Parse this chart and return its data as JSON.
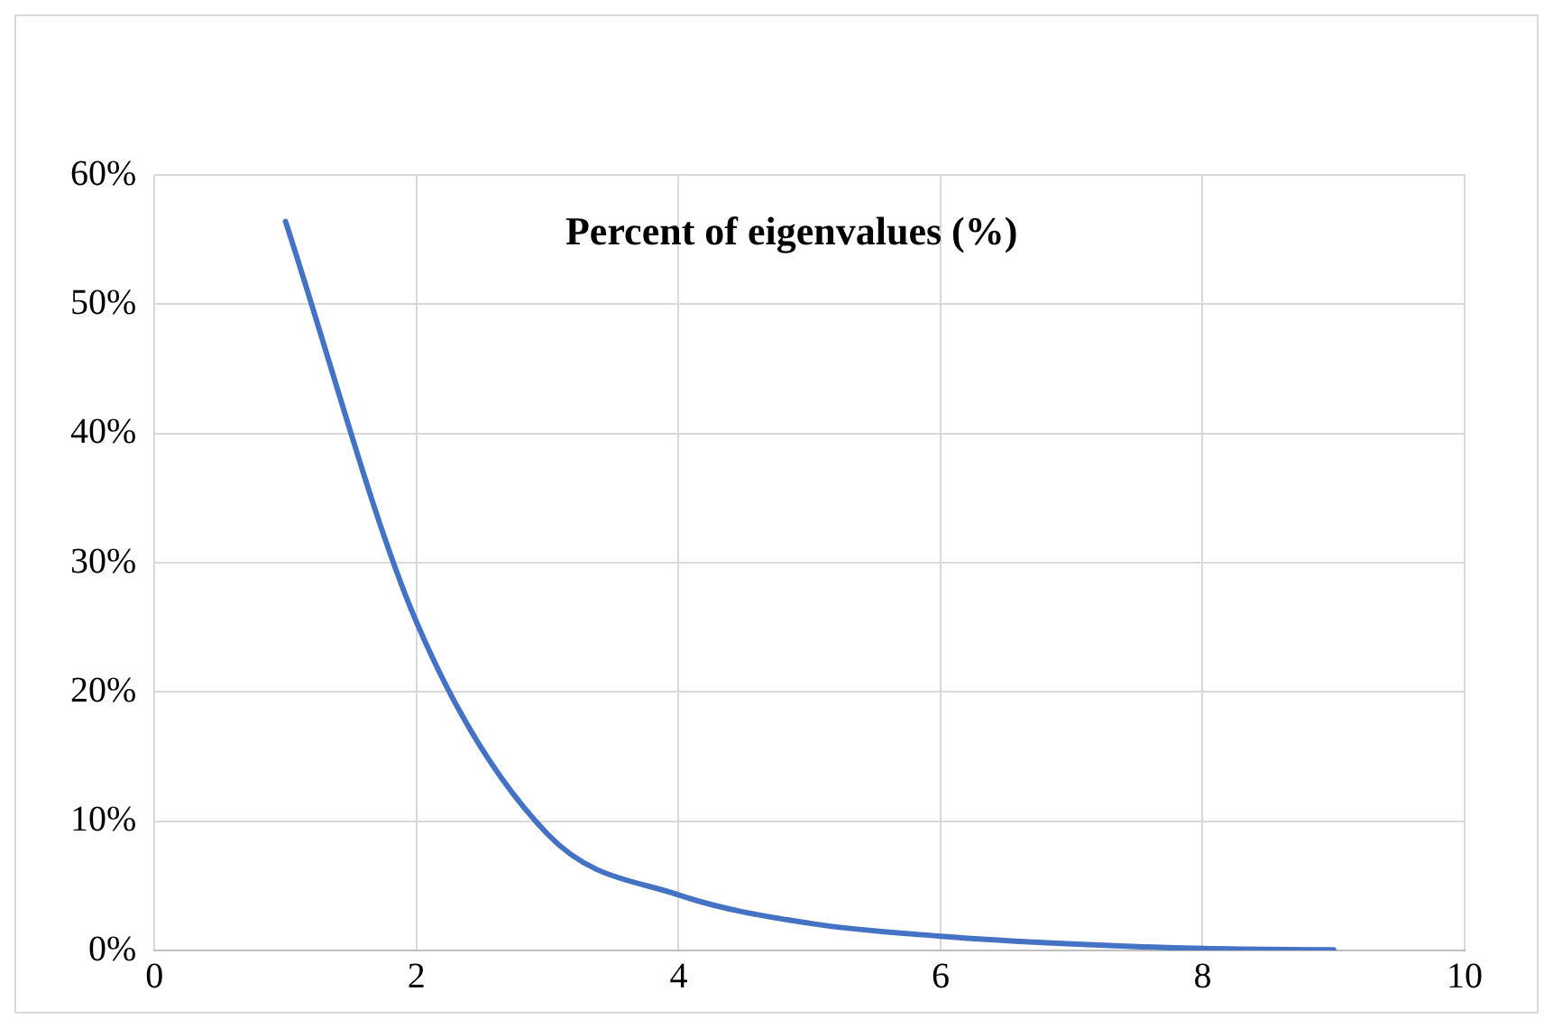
{
  "chart_data": {
    "type": "line",
    "title": "Percent of eigenvalues (%)",
    "x": [
      1,
      2,
      3,
      4,
      5,
      6,
      7,
      8,
      9
    ],
    "series": [
      {
        "color": "#4472c4",
        "values": [
          56.4,
          25.4,
          9,
          4.3,
          2.1,
          1.1,
          0.5,
          0.15,
          0.05
        ]
      }
    ],
    "xlim": [
      0,
      10
    ],
    "xticks": [
      0,
      2,
      4,
      6,
      8,
      10
    ],
    "ylim": [
      0,
      60
    ],
    "yticks": [
      {
        "value": 0,
        "label": "0%"
      },
      {
        "value": 10,
        "label": "10%"
      },
      {
        "value": 20,
        "label": "20%"
      },
      {
        "value": 30,
        "label": "30%"
      },
      {
        "value": 40,
        "label": "40%"
      },
      {
        "value": 50,
        "label": "50%"
      },
      {
        "value": 60,
        "label": "60%"
      }
    ],
    "grid": true,
    "legend": false,
    "marker": "none",
    "line_style": "solid"
  }
}
